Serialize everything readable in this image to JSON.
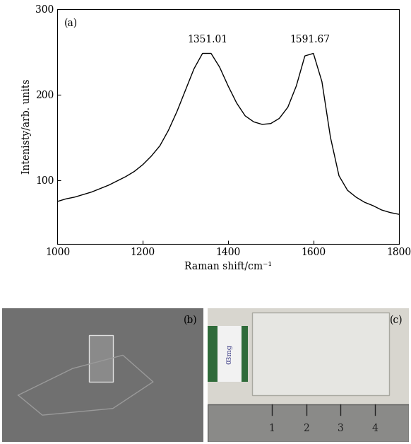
{
  "chart_data": {
    "type": "line",
    "title": "(a)",
    "x_label": "Raman shift/cm⁻¹",
    "y_label": "Intenisty/arb. units",
    "x": [
      1000,
      1020,
      1040,
      1060,
      1080,
      1100,
      1120,
      1140,
      1160,
      1180,
      1200,
      1220,
      1240,
      1260,
      1280,
      1300,
      1320,
      1340,
      1360,
      1380,
      1400,
      1420,
      1440,
      1460,
      1480,
      1500,
      1520,
      1540,
      1560,
      1580,
      1600,
      1620,
      1640,
      1660,
      1680,
      1700,
      1720,
      1740,
      1760,
      1780,
      1800
    ],
    "values": [
      75,
      78,
      80,
      83,
      86,
      90,
      94,
      99,
      104,
      110,
      118,
      128,
      140,
      158,
      180,
      205,
      230,
      248,
      248,
      232,
      210,
      190,
      175,
      168,
      165,
      166,
      172,
      185,
      210,
      245,
      248,
      215,
      150,
      105,
      88,
      80,
      74,
      70,
      65,
      62,
      60
    ],
    "color": "#000000",
    "xlim": [
      1000,
      1800
    ],
    "ylim": [
      25,
      300
    ],
    "xticks": [
      1000,
      1200,
      1400,
      1600,
      1800
    ],
    "yticks": [
      100,
      200,
      300
    ],
    "annotations": [
      {
        "x": 1351.01,
        "y": 258,
        "label": "1351.01"
      },
      {
        "x": 1591.67,
        "y": 258,
        "label": "1591.67"
      }
    ]
  },
  "images": [
    {
      "label": "(b)"
    },
    {
      "label": "(c)",
      "ruler_labels": [
        "1",
        "2",
        "3",
        "4"
      ],
      "tag": "03mg"
    }
  ]
}
